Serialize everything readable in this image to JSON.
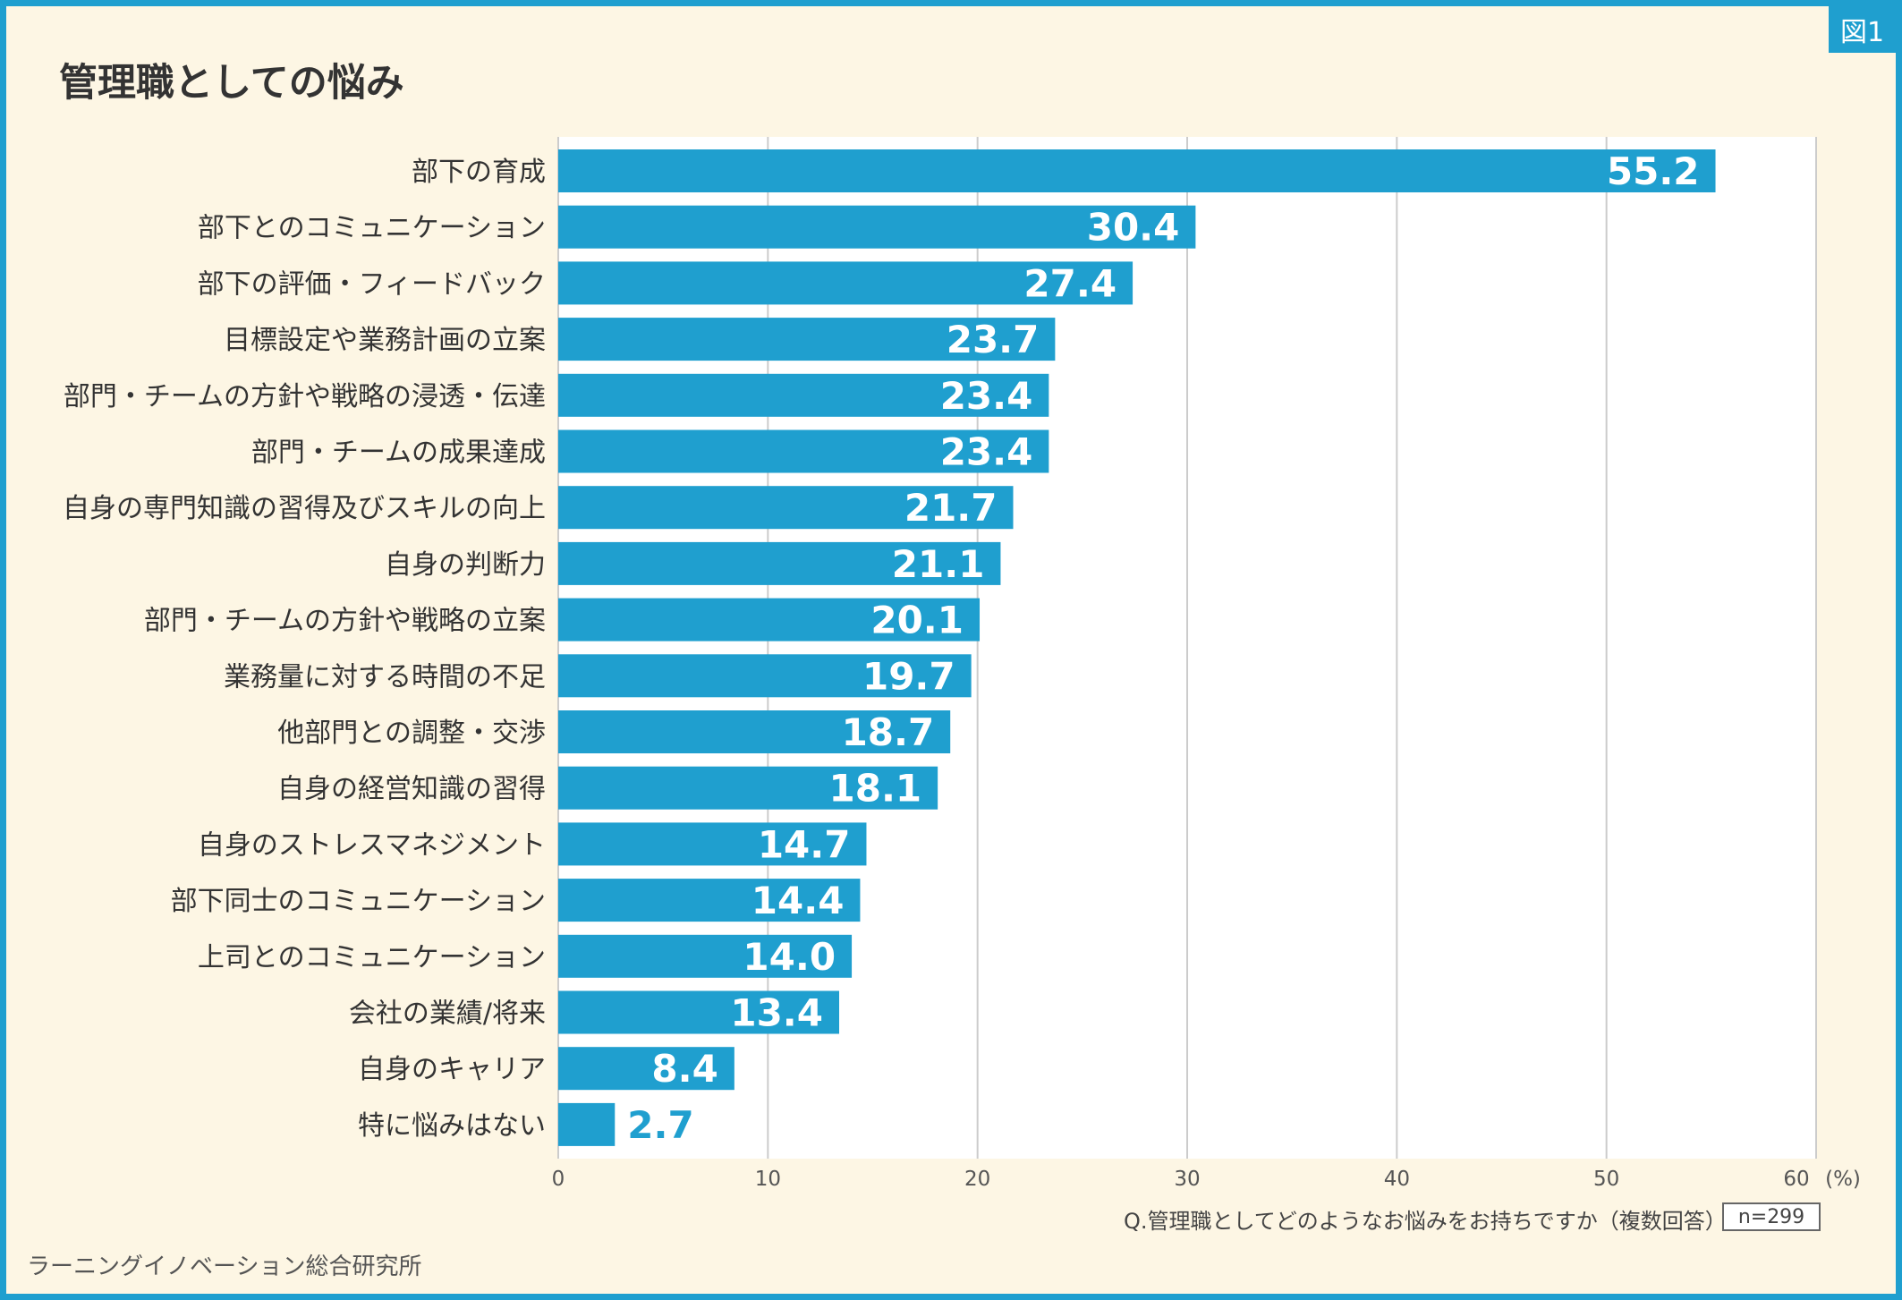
{
  "badge": "図1",
  "question": "Q.管理職としてどのようなお悩みをお持ちですか（複数回答）",
  "sample": "n=299",
  "source": "ラーニングイノベーション総合研究所",
  "colors": {
    "bar": "#1f9fcf",
    "background": "#fdf6e4",
    "plot": "#ffffff",
    "grid": "#cccccc"
  },
  "chart_data": {
    "type": "bar",
    "orientation": "horizontal",
    "title": "管理職としての悩み",
    "xunit": "(%)",
    "xlim": [
      0,
      60
    ],
    "xticks": [
      "0",
      "10",
      "20",
      "30",
      "40",
      "50",
      "60"
    ],
    "grid": true,
    "categories": [
      "部下の育成",
      "部下とのコミュニケーション",
      "部下の評価・フィードバック",
      "目標設定や業務計画の立案",
      "部門・チームの方針や戦略の浸透・伝達",
      "部門・チームの成果達成",
      "自身の専門知識の習得及びスキルの向上",
      "自身の判断力",
      "部門・チームの方針や戦略の立案",
      "業務量に対する時間の不足",
      "他部門との調整・交渉",
      "自身の経営知識の習得",
      "自身のストレスマネジメント",
      "部下同士のコミュニケーション",
      "上司とのコミュニケーション",
      "会社の業績/将来",
      "自身のキャリア",
      "特に悩みはない"
    ],
    "values": [
      55.2,
      30.4,
      27.4,
      23.7,
      23.4,
      23.4,
      21.7,
      21.1,
      20.1,
      19.7,
      18.7,
      18.1,
      14.7,
      14.4,
      14.0,
      13.4,
      8.4,
      2.7
    ],
    "value_labels": [
      "55.2",
      "30.4",
      "27.4",
      "23.7",
      "23.4",
      "23.4",
      "21.7",
      "21.1",
      "20.1",
      "19.7",
      "18.7",
      "18.1",
      "14.7",
      "14.4",
      "14.0",
      "13.4",
      "8.4",
      "2.7"
    ]
  }
}
